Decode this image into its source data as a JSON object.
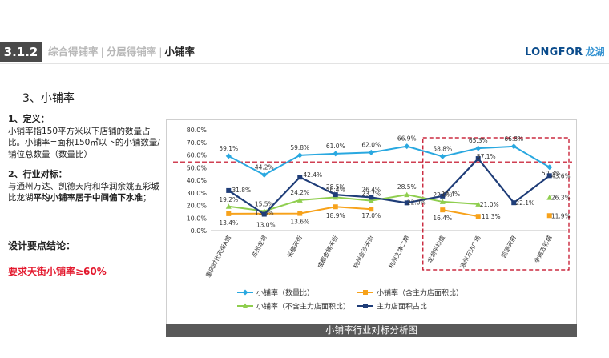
{
  "header": {
    "section_number": "3.1.2",
    "crumb1": "综合得铺率",
    "sep": "|",
    "crumb2": "分层得铺率",
    "crumb3": "小铺率",
    "logo_text": "LONGFOR",
    "logo_cn": "龙湖"
  },
  "subtitle": "3、小铺率",
  "definition": {
    "heading": "1、定义：",
    "text1": "小铺率指150平方米以下店铺的数量占比。小铺率=面积150㎡以下的小铺数量/铺位总数量（数量比）"
  },
  "benchmark": {
    "heading": "2、行业对标：",
    "text_normal": "与通州万达、凯德天府和华润余姚五彩城比龙湖",
    "text_bold": "平均小铺率居于中间偏下水准",
    "text_end": "；"
  },
  "conclusion": {
    "title": "设计要点结论：",
    "text": "要求天街小铺率≥60%"
  },
  "chart_data": {
    "type": "line",
    "categories": [
      "重庆时代天街A馆",
      "苏州龙湖",
      "长楹天街",
      "成都金楠天街",
      "杭州金沙天街",
      "杭州文体二期",
      "龙湖平均值",
      "通州万达广场",
      "凯德天府",
      "余姚五彩城"
    ],
    "y_ticks": [
      "0.0%",
      "10.0%",
      "20.0%",
      "30.0%",
      "40.0%",
      "50.0%",
      "60.0%",
      "70.0%",
      "80.0%"
    ],
    "ylim": [
      0,
      80
    ],
    "reference_line": 54.5,
    "series": [
      {
        "name": "小铺率（数量比）",
        "color": "#29a8e0",
        "marker": "diamond",
        "values": [
          59.1,
          44.2,
          59.8,
          61.0,
          62.0,
          66.9,
          58.8,
          65.3,
          66.8,
          50.3
        ],
        "labels": [
          "59.1%",
          "44.2%",
          "59.8%",
          "61.0%",
          "62.0%",
          "66.9%",
          "58.8%",
          "65.3%",
          "66.8%",
          "50.3%"
        ]
      },
      {
        "name": "小铺率（含主力店面积比）",
        "color": "#f7a21b",
        "marker": "square",
        "values": [
          13.4,
          13.5,
          13.6,
          18.9,
          17.0,
          null,
          16.4,
          11.3,
          null,
          11.9
        ],
        "labels": [
          "13.4%",
          "13.5%",
          "13.6%",
          "18.9%",
          "17.0%",
          "",
          "16.4%",
          "11.3%",
          "",
          "11.9%"
        ]
      },
      {
        "name": "小铺率（不含主力店面积比）",
        "color": "#8fce4f",
        "marker": "triangle",
        "values": [
          19.2,
          15.5,
          24.2,
          26.4,
          23.7,
          28.5,
          22.9,
          21.0,
          null,
          26.3
        ],
        "labels": [
          "19.2%",
          "15.5%",
          "24.2%",
          "26.4%",
          "23.7%",
          "28.5%",
          "22.9%",
          "21.0%",
          "",
          "26.3%"
        ]
      },
      {
        "name": "主力店面积占比",
        "color": "#1f3d78",
        "marker": "square",
        "values": [
          31.8,
          13.0,
          42.4,
          28.5,
          26.4,
          22.0,
          27.4,
          57.1,
          22.1,
          43.6
        ],
        "labels": [
          "31.8%",
          "13.0%",
          "42.4%",
          "28.5%",
          "26.4%",
          "22.0%",
          "27.4%",
          "57.1%",
          "22.1%",
          "43.6%"
        ]
      }
    ]
  },
  "caption": "小铺率行业对标分析图"
}
